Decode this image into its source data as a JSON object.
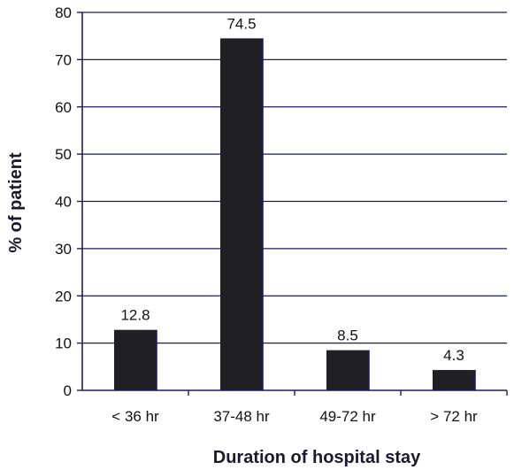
{
  "chart_data": {
    "type": "bar",
    "title": "",
    "xlabel": "Duration of hospital stay",
    "ylabel": "% of patient",
    "categories": [
      "< 36 hr",
      "37-48 hr",
      "49-72 hr",
      "> 72 hr"
    ],
    "values": [
      12.8,
      74.5,
      8.5,
      4.3
    ],
    "data_labels": [
      "12.8",
      "74.5",
      "8.5",
      "4.3"
    ],
    "ylim": [
      0,
      80
    ],
    "yticks": [
      0,
      10,
      20,
      30,
      40,
      50,
      60,
      70,
      80
    ],
    "grid": true,
    "legend": "none",
    "colors": {
      "bar": "#1f1f24",
      "bar_edge": "#16166e",
      "grid": "#1c1c5a",
      "axis": "#1c1c5a"
    }
  }
}
